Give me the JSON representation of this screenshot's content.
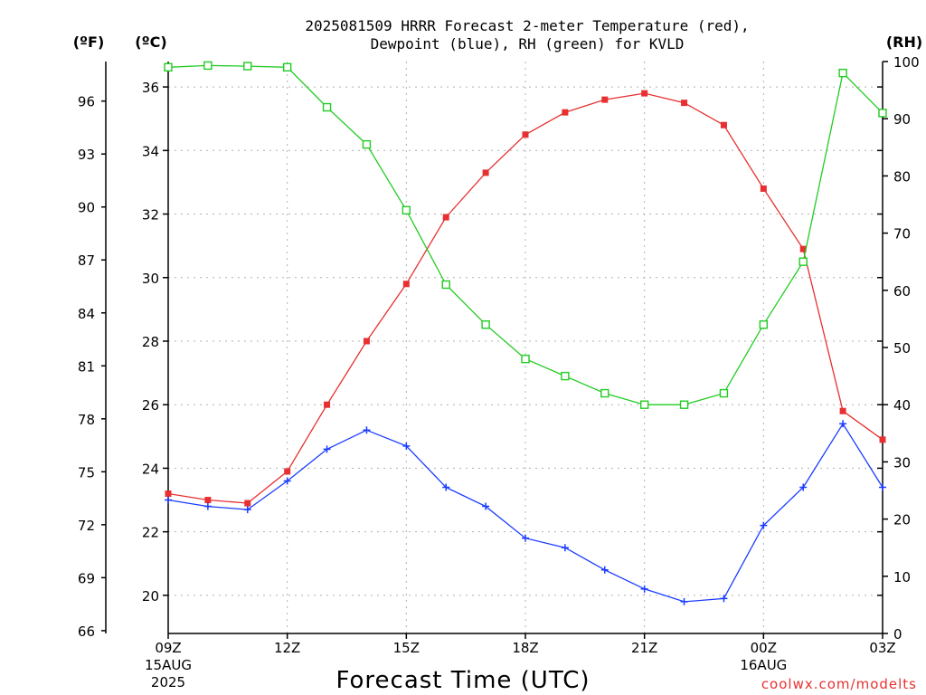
{
  "chart_data": {
    "type": "line",
    "title_lines": [
      "2025081509 HRRR Forecast 2-meter Temperature (red),",
      "Dewpoint (blue), RH (green) for KVLD"
    ],
    "xlabel": "Forecast Time (UTC)",
    "credit": "coolwx.com/modelts",
    "units": {
      "fahrenheit": "(ºF)",
      "celsius": "(ºC)",
      "rh": "(RH)"
    },
    "x": [
      "09Z",
      "10Z",
      "11Z",
      "12Z",
      "13Z",
      "14Z",
      "15Z",
      "16Z",
      "17Z",
      "18Z",
      "19Z",
      "20Z",
      "21Z",
      "22Z",
      "23Z",
      "00Z",
      "01Z",
      "02Z",
      "03Z"
    ],
    "x_ticks": [
      {
        "label": "09Z",
        "sub1": "15AUG",
        "sub2": "2025"
      },
      {
        "label": "12Z",
        "sub1": "",
        "sub2": ""
      },
      {
        "label": "15Z",
        "sub1": "",
        "sub2": ""
      },
      {
        "label": "18Z",
        "sub1": "",
        "sub2": ""
      },
      {
        "label": "21Z",
        "sub1": "",
        "sub2": ""
      },
      {
        "label": "00Z",
        "sub1": "16AUG",
        "sub2": ""
      },
      {
        "label": "03Z",
        "sub1": "",
        "sub2": ""
      }
    ],
    "y_celsius_ticks": [
      "20",
      "22",
      "24",
      "26",
      "28",
      "30",
      "32",
      "34",
      "36"
    ],
    "y_fahrenheit_ticks": [
      "66",
      "69",
      "72",
      "75",
      "78",
      "81",
      "84",
      "87",
      "90",
      "93",
      "96"
    ],
    "y_rh_ticks": [
      "0",
      "10",
      "20",
      "30",
      "40",
      "50",
      "60",
      "70",
      "80",
      "90",
      "100"
    ],
    "celsius_range": [
      18.8,
      36.8
    ],
    "rh_range": [
      0,
      100
    ],
    "grid": true,
    "series": [
      {
        "name": "Temperature",
        "axis": "celsius",
        "color": "#e83030",
        "marker": "filled-square",
        "values": [
          23.2,
          23.0,
          22.9,
          23.9,
          26.0,
          28.0,
          29.8,
          31.9,
          33.3,
          34.5,
          35.2,
          35.6,
          35.8,
          35.5,
          34.8,
          32.8,
          30.9,
          25.8,
          24.9
        ]
      },
      {
        "name": "Dewpoint",
        "axis": "celsius",
        "color": "#1a3cff",
        "marker": "plus",
        "values": [
          23.0,
          22.8,
          22.7,
          23.6,
          24.6,
          25.2,
          24.7,
          23.4,
          22.8,
          21.8,
          21.5,
          20.8,
          20.2,
          19.8,
          19.9,
          22.2,
          23.4,
          25.4,
          23.4
        ]
      },
      {
        "name": "RH",
        "axis": "rh",
        "color": "#22cc22",
        "marker": "open-square",
        "values": [
          99.0,
          99.3,
          99.2,
          99.0,
          92.0,
          85.5,
          74.0,
          61.0,
          54.0,
          48.0,
          45.0,
          42.0,
          40.0,
          40.0,
          42.0,
          54.0,
          65.0,
          98.0,
          91.0
        ]
      }
    ]
  }
}
